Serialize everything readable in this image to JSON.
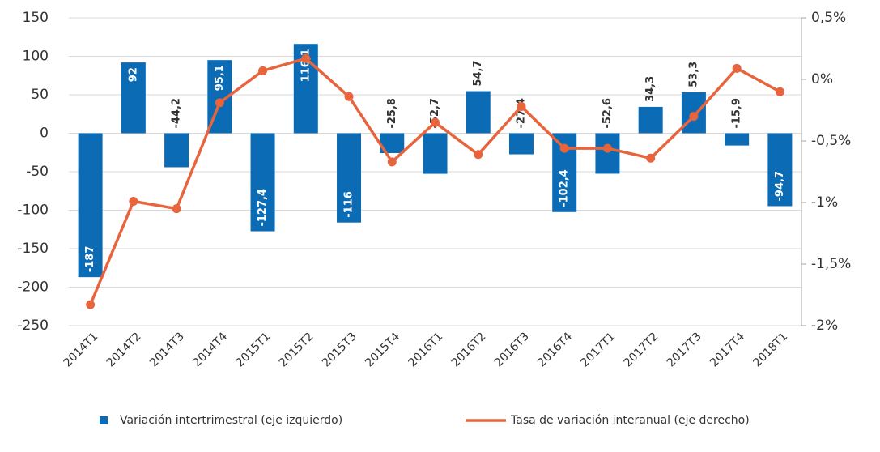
{
  "chart_data": {
    "type": "bar",
    "categories": [
      "2014T1",
      "2014T2",
      "2014T3",
      "2014T4",
      "2015T1",
      "2015T2",
      "2015T3",
      "2015T4",
      "2016T1",
      "2016T2",
      "2016T3",
      "2016T4",
      "2017T1",
      "2017T2",
      "2017T3",
      "2017T4",
      "2018T1"
    ],
    "series": [
      {
        "name": "Variación intertrimestral (eje izquierdo)",
        "type": "bar",
        "color": "#0b6cb5",
        "values": [
          -187,
          92,
          -44.2,
          95.1,
          -127.4,
          116.1,
          -116,
          -25.8,
          -52.7,
          54.7,
          -27.4,
          -102.4,
          -52.6,
          34.3,
          53.3,
          -15.9,
          -94.7
        ],
        "value_labels": [
          "-187",
          "92",
          "-44,2",
          "95,1",
          "-127,4",
          "116,1",
          "-116",
          "-25,8",
          "-52,7",
          "54,7",
          "-27,4",
          "-102,4",
          "-52,6",
          "34,3",
          "53,3",
          "-15,9",
          "-94,7"
        ]
      },
      {
        "name": "Tasa de variación interanual (eje derecho)",
        "type": "line",
        "axis": "y2",
        "color": "#e8643c",
        "values": [
          -1.83,
          -0.99,
          -1.05,
          -0.19,
          0.07,
          0.17,
          -0.14,
          -0.67,
          -0.35,
          -0.61,
          -0.22,
          -0.56,
          -0.56,
          -0.64,
          -0.3,
          0.09,
          -0.1
        ]
      }
    ],
    "ylim": [
      -250,
      150
    ],
    "yticks": [
      -250,
      -200,
      -150,
      -100,
      -50,
      0,
      50,
      100,
      150
    ],
    "y2lim": [
      -2,
      0.5
    ],
    "y2ticks": [
      {
        "value": -2,
        "label": "-2%"
      },
      {
        "value": -1.5,
        "label": "-1,5%"
      },
      {
        "value": -1,
        "label": "-1%"
      },
      {
        "value": -0.5,
        "label": "-0,5%"
      },
      {
        "value": 0,
        "label": "0%"
      },
      {
        "value": 0.5,
        "label": "0,5%"
      }
    ],
    "grid": true
  }
}
